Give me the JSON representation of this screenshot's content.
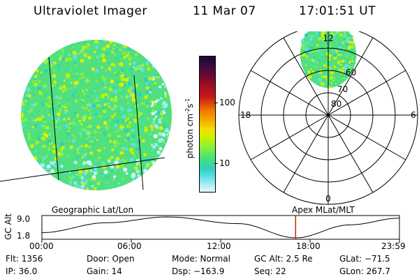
{
  "header": {
    "instrument": "Ultraviolet Imager",
    "date": "11 Mar 07",
    "time": "17:01:51 UT"
  },
  "colorbar": {
    "unit": "photon cm",
    "unit_exp1": "-2",
    "unit_mid": "s",
    "unit_exp2": "-1",
    "ticks": [
      "100",
      "10"
    ],
    "colors": [
      "#1a0a2e",
      "#3a0a40",
      "#6a0a30",
      "#a01020",
      "#c81818",
      "#e04010",
      "#f07a00",
      "#f8b000",
      "#f0e000",
      "#c8f000",
      "#80f040",
      "#40e080",
      "#30d0c0",
      "#60e0e8",
      "#a0ecf0",
      "#d8f4f8"
    ]
  },
  "polar": {
    "lat_labels": [
      "60",
      "70",
      "80"
    ],
    "mlt_labels": {
      "top": "12",
      "bottom": "0",
      "left": "18",
      "right": "6"
    }
  },
  "timeline": {
    "left_label": "Geographic Lat/Lon",
    "right_label": "Apex MLat/MLT",
    "axis_title": "GC Alt",
    "y_ticks": [
      "9.0",
      "1.8"
    ],
    "x_ticks": [
      "00:00",
      "06:00",
      "12:00",
      "18:00",
      "23:59"
    ],
    "marker_fraction": 0.7096
  },
  "info": {
    "col1": [
      "Flt: 1356",
      "IP: 36.0"
    ],
    "col2": [
      "Door: Open",
      "Gain: 14"
    ],
    "col3": [
      "Mode: Normal",
      "Dsp: −163.9"
    ],
    "col4": [
      "GC Alt: 2.5 Re",
      "Seq: 22"
    ],
    "col5": [
      "GLat: −71.5",
      "GLon: 267.7"
    ]
  }
}
